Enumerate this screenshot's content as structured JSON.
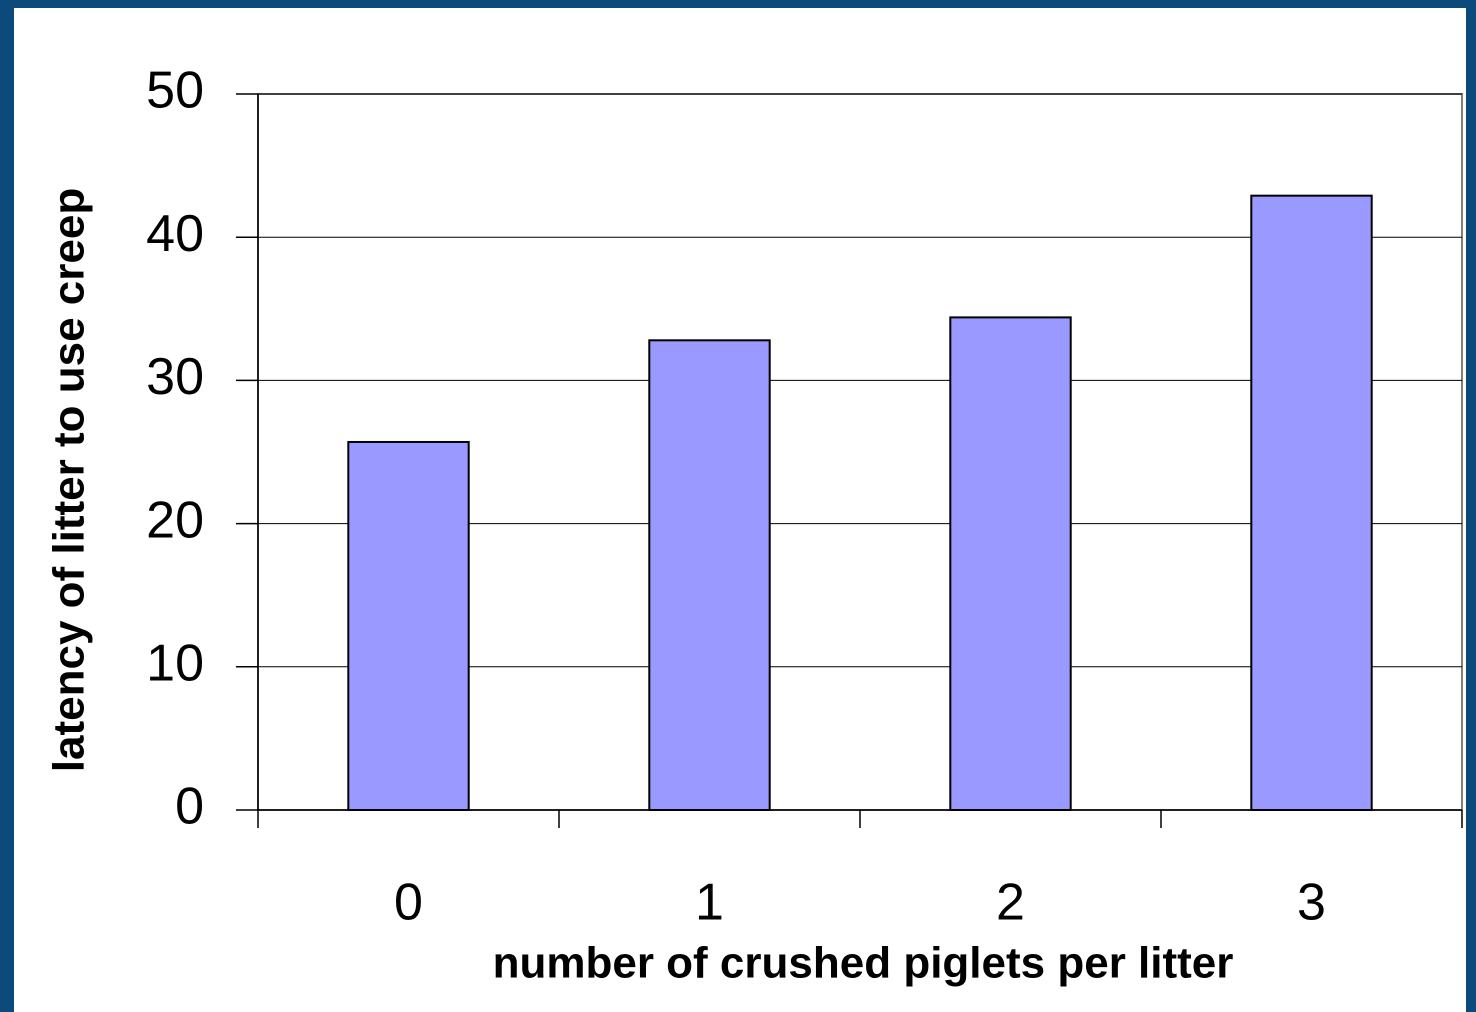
{
  "chart_data": {
    "type": "bar",
    "categories": [
      "0",
      "1",
      "2",
      "3"
    ],
    "values": [
      25.7,
      32.8,
      34.4,
      42.9
    ],
    "color": "#9999ff",
    "xlabel": "number of crushed piglets per litter",
    "ylabel": "latency of litter to use creep",
    "ylim": [
      0,
      50
    ],
    "yticks": [
      0,
      10,
      20,
      30,
      40,
      50
    ],
    "grid": true
  }
}
